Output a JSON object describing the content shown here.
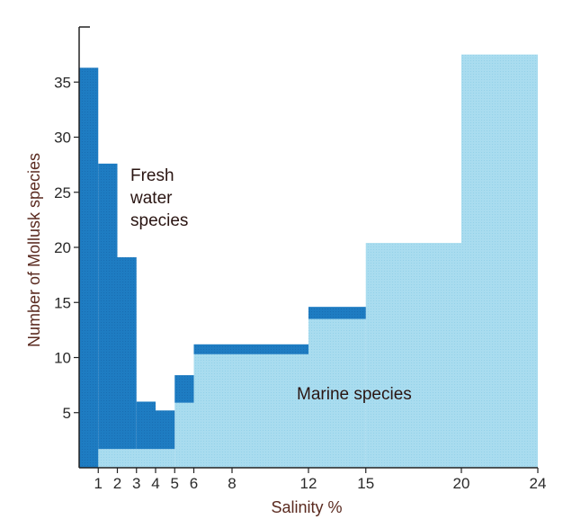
{
  "chart_data": {
    "type": "bar",
    "title": "",
    "xlabel": "Salinity %",
    "ylabel": "Number of Mollusk species",
    "x_ticks": [
      1,
      2,
      3,
      4,
      5,
      6,
      8,
      12,
      15,
      20,
      24
    ],
    "y_ticks": [
      5,
      10,
      15,
      20,
      25,
      30,
      35
    ],
    "xlim": [
      0,
      24
    ],
    "ylim": [
      0,
      40
    ],
    "grid": false,
    "colors": {
      "fresh": "#1e7cc2",
      "marine": "#a9dcef"
    },
    "series": [
      {
        "name": "Fresh water species",
        "bins": [
          {
            "x0": 0,
            "x1": 1,
            "bottom": 0,
            "top": 36.3
          },
          {
            "x0": 1,
            "x1": 2,
            "bottom": 1.7,
            "top": 27.6
          },
          {
            "x0": 2,
            "x1": 3,
            "bottom": 1.7,
            "top": 19.1
          },
          {
            "x0": 3,
            "x1": 4,
            "bottom": 1.7,
            "top": 6
          },
          {
            "x0": 4,
            "x1": 5,
            "bottom": 1.7,
            "top": 5.2
          },
          {
            "x0": 5,
            "x1": 6,
            "bottom": 5.9,
            "top": 8.4
          },
          {
            "x0": 6,
            "x1": 12,
            "bottom": 10.3,
            "top": 11.2
          },
          {
            "x0": 12,
            "x1": 15,
            "bottom": 13.5,
            "top": 14.6
          }
        ]
      },
      {
        "name": "Marine species",
        "bins": [
          {
            "x0": 1,
            "x1": 5,
            "bottom": 0,
            "top": 1.7
          },
          {
            "x0": 5,
            "x1": 6,
            "bottom": 0,
            "top": 5.9
          },
          {
            "x0": 6,
            "x1": 12,
            "bottom": 0,
            "top": 10.3
          },
          {
            "x0": 12,
            "x1": 15,
            "bottom": 0,
            "top": 13.5
          },
          {
            "x0": 15,
            "x1": 20,
            "bottom": 0,
            "top": 20.4
          },
          {
            "x0": 20,
            "x1": 24,
            "bottom": 0,
            "top": 37.5
          }
        ]
      }
    ],
    "annotations": [
      {
        "lines": [
          "Fresh",
          "water",
          "species"
        ]
      },
      {
        "text": "Marine species"
      }
    ]
  }
}
